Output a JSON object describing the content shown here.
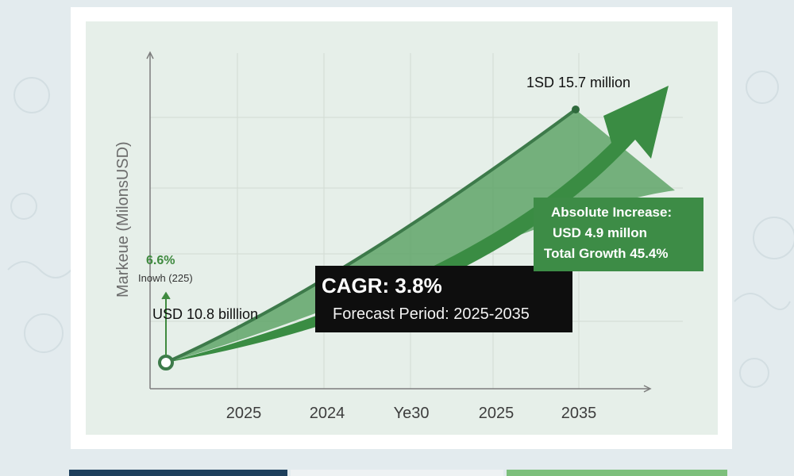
{
  "chart_data": {
    "type": "line",
    "ylabel": "Markeue (MilonsUSD)",
    "xlabel": "",
    "x_tick_labels": [
      "2025",
      "2024",
      "Ye30",
      "2025",
      "2035"
    ],
    "series": [
      {
        "values": [
          10.8,
          15.7
        ]
      }
    ],
    "start_label": "USD 10.8 billlion",
    "end_label": "1SD 15.7 million",
    "side_note": {
      "percent": "6.6%",
      "caption": "Inowh (225)"
    },
    "cagr_box": {
      "title": "CAGR: 3.8%",
      "period": "Forecast Period: 2025-2035"
    },
    "increase_box": {
      "title": "Absolute Increase:",
      "value": "USD 4.9  millon",
      "growth": "Total Growth 45.4%"
    },
    "grid": true,
    "colors": {
      "line": "#3d7a4a",
      "area": "#5aa264",
      "arrow": "#3a8c43",
      "panel": "#e6efe9",
      "cagr_box": "#0e0e0e",
      "increase_box": "#3d8c46"
    }
  }
}
